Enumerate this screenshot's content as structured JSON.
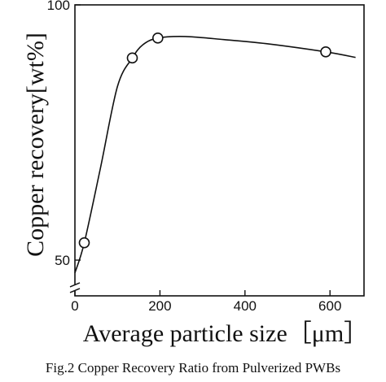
{
  "chart_data": {
    "type": "line",
    "title": "",
    "xlabel": "Average particle size［μm］",
    "ylabel": "Copper recovery[wt%]",
    "xlim": [
      0,
      680
    ],
    "ylim": [
      43,
      100
    ],
    "y_axis_break": true,
    "grid": false,
    "x_ticks": [
      0,
      200,
      400,
      600
    ],
    "y_ticks": [
      50,
      100
    ],
    "marker": "open-circle",
    "line_color": "#111111",
    "series": [
      {
        "x": [
          22,
          135,
          195,
          590
        ],
        "y": [
          53.4,
          89.6,
          93.5,
          90.8
        ],
        "curve_x": [
          0,
          22,
          60,
          100,
          135,
          160,
          195,
          260,
          350,
          450,
          590,
          660
        ],
        "curve_y": [
          47.5,
          53.4,
          68,
          84,
          89.6,
          92.2,
          93.5,
          93.8,
          93.2,
          92.4,
          90.8,
          89.7
        ]
      }
    ]
  },
  "caption": "Fig.2 Copper Recovery Ratio from Pulverized PWBs"
}
